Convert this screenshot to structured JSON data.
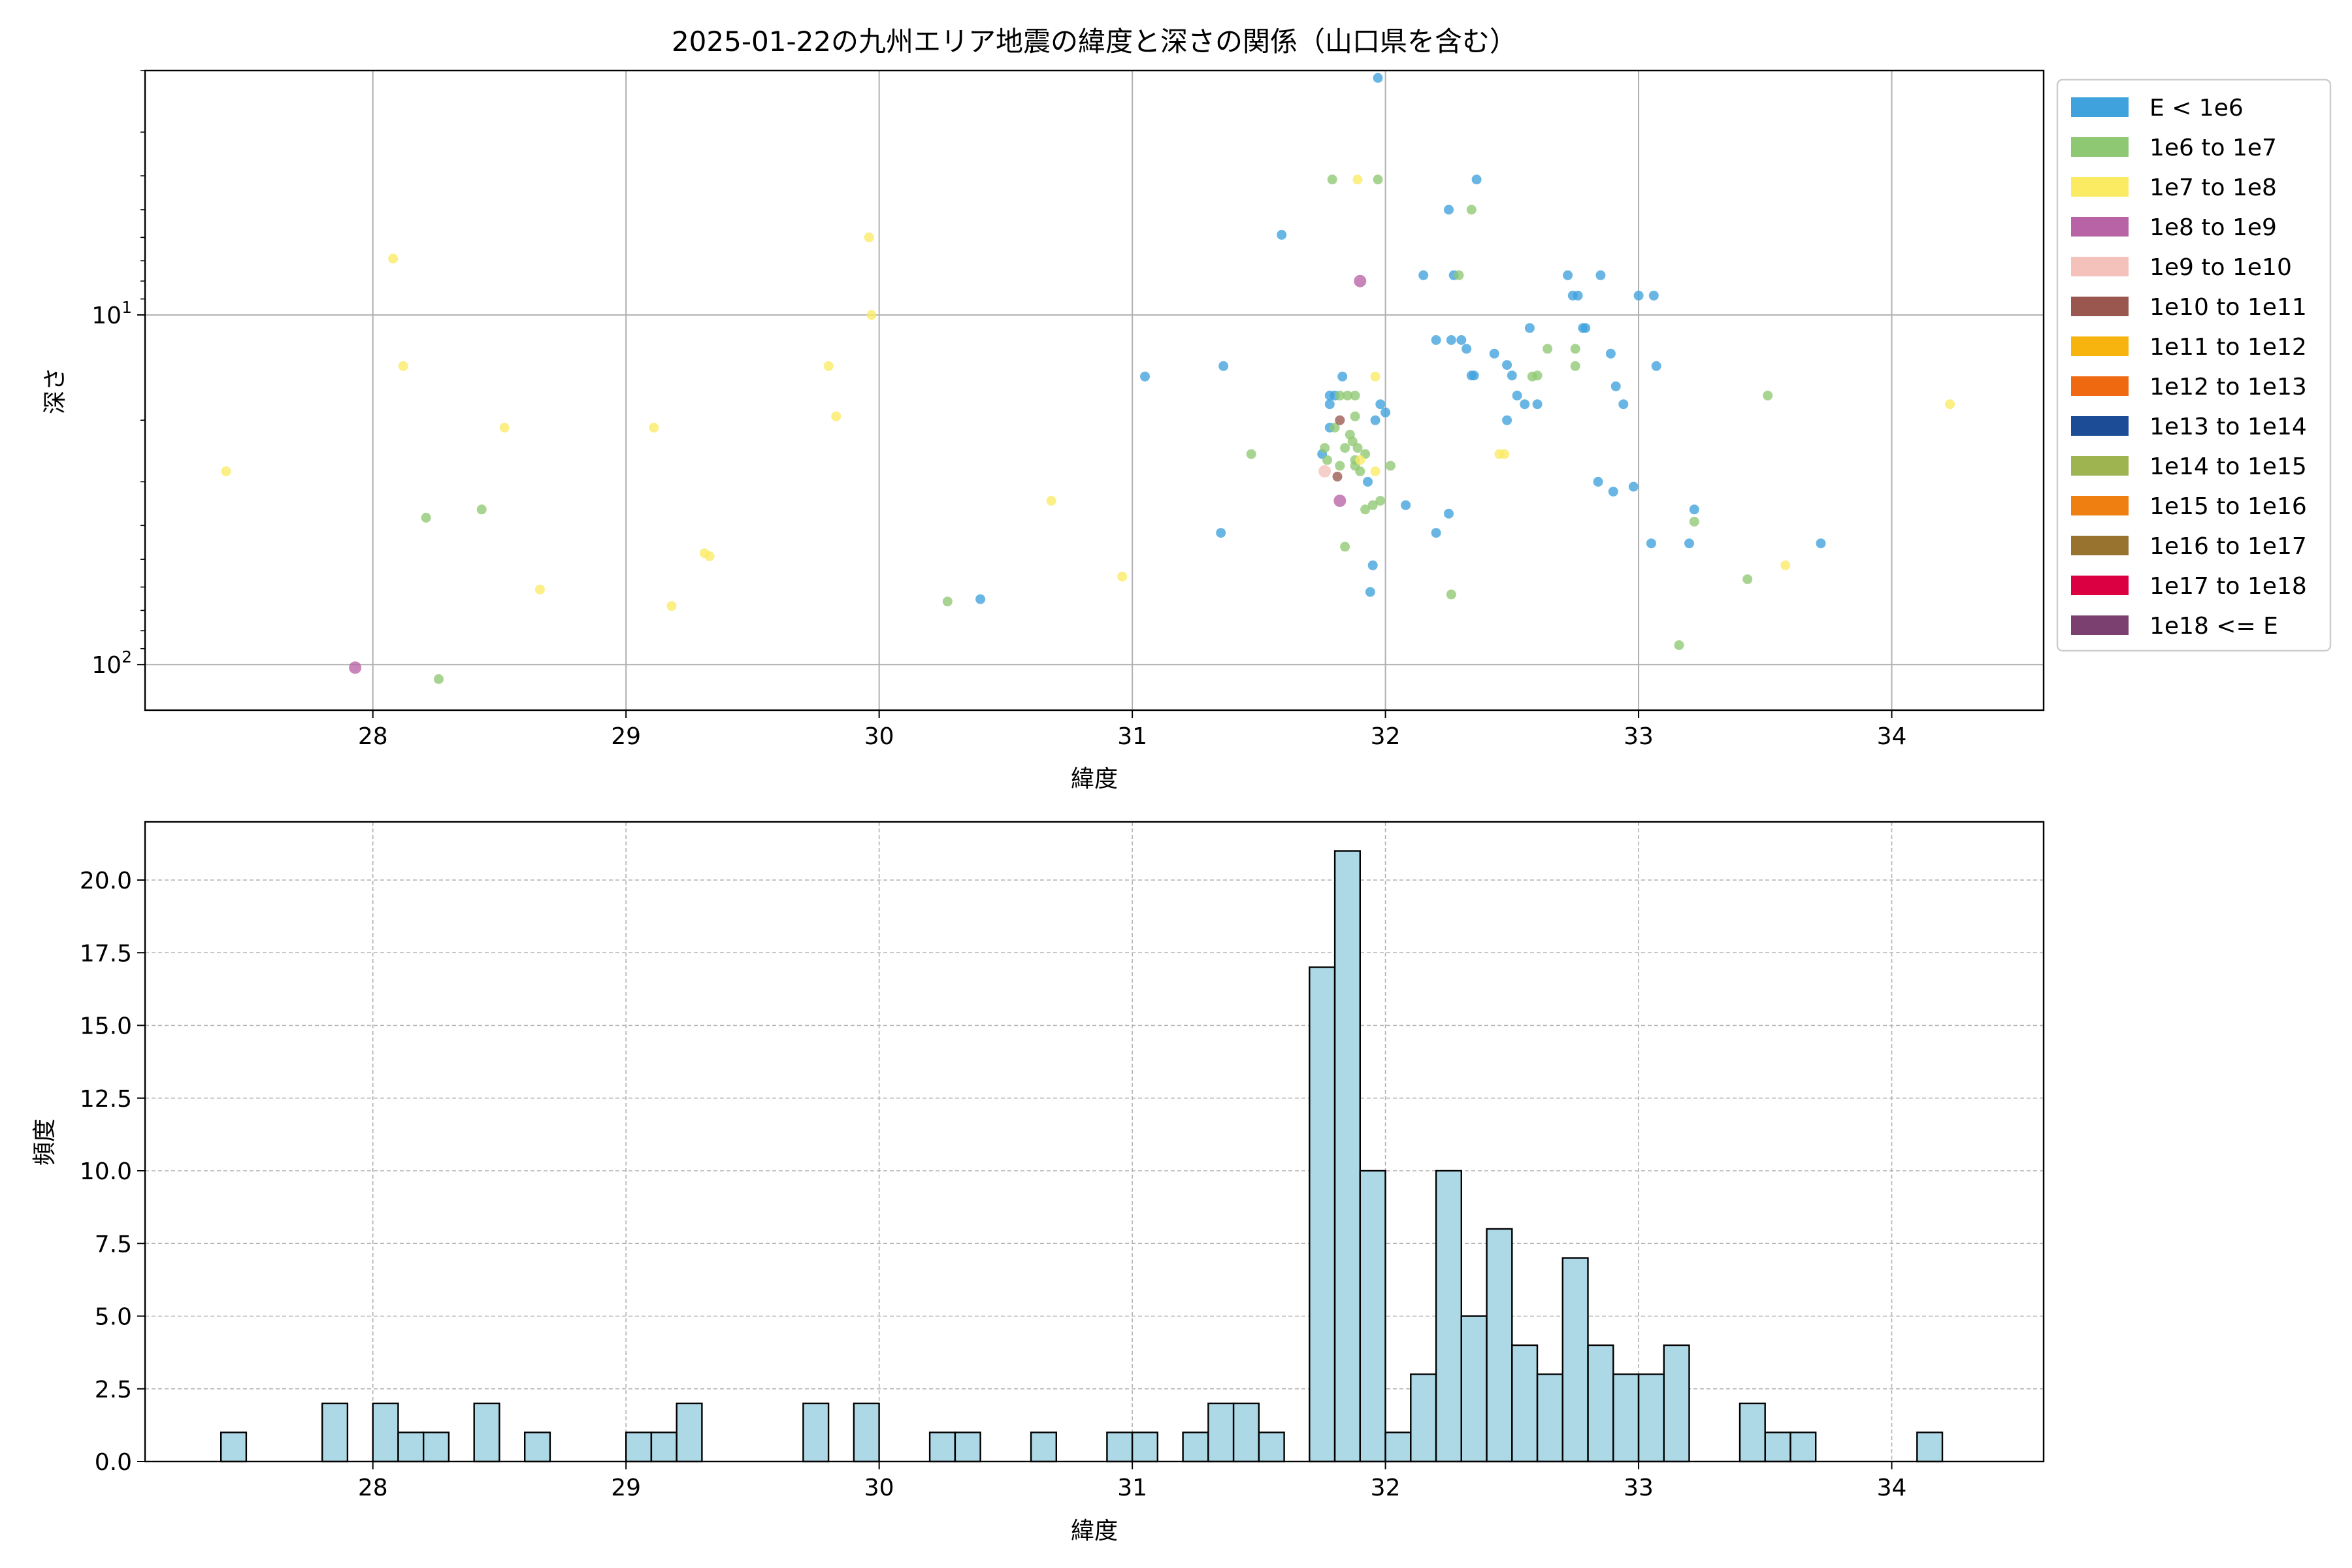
{
  "figure": {
    "title": "2025-01-22の九州エリア地震の緯度と深さの関係（山口県を含む）"
  },
  "chart_data": [
    {
      "type": "scatter",
      "xlabel": "緯度",
      "ylabel": "深さ",
      "xlim": [
        27.1,
        34.6
      ],
      "ylim": [
        135,
        2
      ],
      "yscale": "log",
      "y_inverted": true,
      "grid": true,
      "legend_placement": "outside-right",
      "xticks": [
        28,
        29,
        30,
        31,
        32,
        33,
        34
      ],
      "yticks": [
        {
          "value": 10,
          "base": "10",
          "exp": "1"
        },
        {
          "value": 100,
          "base": "10",
          "exp": "2"
        }
      ],
      "legend": [
        {
          "label": "E < 1e6",
          "color": "#3fa2dc"
        },
        {
          "label": "1e6 to 1e7",
          "color": "#8fc872"
        },
        {
          "label": "1e7 to 1e8",
          "color": "#faeb63"
        },
        {
          "label": "1e8 to 1e9",
          "color": "#b863a6"
        },
        {
          "label": "1e9 to 1e10",
          "color": "#f4c1bb"
        },
        {
          "label": "1e10 to 1e11",
          "color": "#9a574f"
        },
        {
          "label": "1e11 to 1e12",
          "color": "#f8b40e"
        },
        {
          "label": "1e12 to 1e13",
          "color": "#ef6910"
        },
        {
          "label": "1e13 to 1e14",
          "color": "#1d4c96"
        },
        {
          "label": "1e14 to 1e15",
          "color": "#9db451"
        },
        {
          "label": "1e15 to 1e16",
          "color": "#ef7f10"
        },
        {
          "label": "1e16 to 1e17",
          "color": "#987330"
        },
        {
          "label": "1e17 to 1e18",
          "color": "#db0042"
        },
        {
          "label": "1e18 <= E",
          "color": "#7b4070"
        }
      ],
      "points": [
        [
          31.97,
          2.1,
          0
        ],
        [
          32.36,
          4.1,
          0
        ],
        [
          32.25,
          5.0,
          0
        ],
        [
          32.27,
          7.7,
          0
        ],
        [
          32.15,
          7.7,
          0
        ],
        [
          31.59,
          5.9,
          0
        ],
        [
          32.72,
          7.7,
          0
        ],
        [
          32.74,
          8.8,
          0
        ],
        [
          32.76,
          8.8,
          0
        ],
        [
          32.85,
          7.7,
          0
        ],
        [
          33.0,
          8.8,
          0
        ],
        [
          33.06,
          8.8,
          0
        ],
        [
          32.2,
          11.8,
          0
        ],
        [
          32.26,
          11.8,
          0
        ],
        [
          32.3,
          11.8,
          0
        ],
        [
          32.32,
          12.5,
          0
        ],
        [
          32.34,
          14.9,
          0
        ],
        [
          32.35,
          14.9,
          0
        ],
        [
          32.43,
          12.9,
          0
        ],
        [
          32.48,
          13.9,
          0
        ],
        [
          32.5,
          14.9,
          0
        ],
        [
          32.57,
          10.9,
          0
        ],
        [
          32.78,
          10.9,
          0
        ],
        [
          32.79,
          10.9,
          0
        ],
        [
          32.89,
          12.9,
          0
        ],
        [
          32.91,
          16.0,
          0
        ],
        [
          32.94,
          18.0,
          0
        ],
        [
          33.07,
          14.0,
          0
        ],
        [
          32.52,
          17.0,
          0
        ],
        [
          32.55,
          18.0,
          0
        ],
        [
          32.6,
          18.0,
          0
        ],
        [
          32.48,
          20.0,
          0
        ],
        [
          31.05,
          15.0,
          0
        ],
        [
          31.36,
          14.0,
          0
        ],
        [
          31.8,
          17.0,
          0
        ],
        [
          31.78,
          17.0,
          0
        ],
        [
          31.83,
          15.0,
          0
        ],
        [
          31.78,
          18.0,
          0
        ],
        [
          31.78,
          21.0,
          0
        ],
        [
          31.75,
          25.0,
          0
        ],
        [
          31.98,
          18.0,
          0
        ],
        [
          32.0,
          19.0,
          0
        ],
        [
          31.96,
          20.0,
          0
        ],
        [
          31.93,
          30.0,
          0
        ],
        [
          32.08,
          35.0,
          0
        ],
        [
          32.25,
          37.0,
          0
        ],
        [
          32.84,
          30.0,
          0
        ],
        [
          32.9,
          32.0,
          0
        ],
        [
          32.98,
          31.0,
          0
        ],
        [
          33.22,
          36.0,
          0
        ],
        [
          31.35,
          42.0,
          0
        ],
        [
          32.2,
          42.0,
          0
        ],
        [
          33.05,
          45.0,
          0
        ],
        [
          33.2,
          45.0,
          0
        ],
        [
          33.72,
          45.0,
          0
        ],
        [
          31.95,
          52.0,
          0
        ],
        [
          31.94,
          62.0,
          0
        ],
        [
          30.4,
          65.0,
          0
        ],
        [
          31.79,
          4.1,
          1
        ],
        [
          31.97,
          4.1,
          1
        ],
        [
          32.34,
          5.0,
          1
        ],
        [
          32.29,
          7.7,
          1
        ],
        [
          31.82,
          17.0,
          1
        ],
        [
          31.85,
          17.0,
          1
        ],
        [
          31.88,
          17.0,
          1
        ],
        [
          31.88,
          19.5,
          1
        ],
        [
          31.8,
          21.0,
          1
        ],
        [
          31.86,
          22.0,
          1
        ],
        [
          31.87,
          23.0,
          1
        ],
        [
          31.84,
          24.0,
          1
        ],
        [
          31.89,
          24.0,
          1
        ],
        [
          31.92,
          25.0,
          1
        ],
        [
          31.88,
          26.0,
          1
        ],
        [
          31.88,
          27.0,
          1
        ],
        [
          31.76,
          24.0,
          1
        ],
        [
          31.77,
          26.0,
          1
        ],
        [
          31.82,
          27.0,
          1
        ],
        [
          31.9,
          28.0,
          1
        ],
        [
          32.02,
          27.0,
          1
        ],
        [
          31.47,
          25.0,
          1
        ],
        [
          32.6,
          14.9,
          1
        ],
        [
          32.64,
          12.5,
          1
        ],
        [
          32.75,
          12.5,
          1
        ],
        [
          32.75,
          14.0,
          1
        ],
        [
          32.58,
          15.0,
          1
        ],
        [
          33.51,
          17.0,
          1
        ],
        [
          28.21,
          38.0,
          1
        ],
        [
          28.43,
          36.0,
          1
        ],
        [
          31.92,
          36.0,
          1
        ],
        [
          31.95,
          35.0,
          1
        ],
        [
          31.98,
          34.0,
          1
        ],
        [
          31.84,
          46.0,
          1
        ],
        [
          33.22,
          39.0,
          1
        ],
        [
          33.43,
          57.0,
          1
        ],
        [
          32.26,
          63.0,
          1
        ],
        [
          30.27,
          66.0,
          1
        ],
        [
          33.16,
          88.0,
          1
        ],
        [
          28.26,
          110.0,
          1
        ],
        [
          31.89,
          4.1,
          2
        ],
        [
          27.42,
          28.0,
          2
        ],
        [
          28.08,
          6.9,
          2
        ],
        [
          28.12,
          14.0,
          2
        ],
        [
          28.52,
          21.0,
          2
        ],
        [
          29.11,
          21.0,
          2
        ],
        [
          29.8,
          14.0,
          2
        ],
        [
          29.83,
          19.5,
          2
        ],
        [
          29.96,
          6.0,
          2
        ],
        [
          29.97,
          10.0,
          2
        ],
        [
          28.66,
          61.0,
          2
        ],
        [
          29.18,
          68.0,
          2
        ],
        [
          29.31,
          48.0,
          2
        ],
        [
          29.33,
          49.0,
          2
        ],
        [
          30.68,
          34.0,
          2
        ],
        [
          30.96,
          56.0,
          2
        ],
        [
          31.96,
          15.0,
          2
        ],
        [
          31.96,
          28.0,
          2
        ],
        [
          31.9,
          26.0,
          2
        ],
        [
          32.45,
          25.0,
          2
        ],
        [
          32.47,
          25.0,
          2
        ],
        [
          33.58,
          52.0,
          2
        ],
        [
          34.23,
          18.0,
          2
        ],
        [
          31.9,
          8.0,
          3
        ],
        [
          31.82,
          34.0,
          3
        ],
        [
          27.93,
          102.0,
          3
        ],
        [
          31.76,
          28.0,
          4
        ],
        [
          31.82,
          20.0,
          5
        ],
        [
          31.81,
          29.0,
          5
        ]
      ]
    },
    {
      "type": "bar",
      "xlabel": "緯度",
      "ylabel": "頻度",
      "xlim": [
        27.1,
        34.6
      ],
      "ylim": [
        0,
        22
      ],
      "grid": true,
      "grid_style": "dashed",
      "bin_width": 0.1,
      "bar_color": "#add8e6",
      "xticks": [
        28,
        29,
        30,
        31,
        32,
        33,
        34
      ],
      "yticks": [
        "0.0",
        "2.5",
        "5.0",
        "7.5",
        "10.0",
        "12.5",
        "15.0",
        "17.5",
        "20.0"
      ],
      "bins": [
        [
          27.45,
          1
        ],
        [
          27.85,
          2
        ],
        [
          28.05,
          2
        ],
        [
          28.15,
          1
        ],
        [
          28.25,
          1
        ],
        [
          28.45,
          2
        ],
        [
          28.65,
          1
        ],
        [
          29.05,
          1
        ],
        [
          29.15,
          1
        ],
        [
          29.25,
          2
        ],
        [
          29.75,
          2
        ],
        [
          29.95,
          2
        ],
        [
          30.25,
          1
        ],
        [
          30.35,
          1
        ],
        [
          30.65,
          1
        ],
        [
          30.95,
          1
        ],
        [
          31.05,
          1
        ],
        [
          31.25,
          1
        ],
        [
          31.35,
          2
        ],
        [
          31.45,
          2
        ],
        [
          31.55,
          1
        ],
        [
          31.75,
          17
        ],
        [
          31.85,
          21
        ],
        [
          31.95,
          10
        ],
        [
          32.05,
          1
        ],
        [
          32.15,
          3
        ],
        [
          32.25,
          10
        ],
        [
          32.35,
          5
        ],
        [
          32.45,
          8
        ],
        [
          32.55,
          4
        ],
        [
          32.65,
          3
        ],
        [
          32.75,
          7
        ],
        [
          32.85,
          4
        ],
        [
          32.95,
          3
        ],
        [
          33.05,
          3
        ],
        [
          33.15,
          4
        ],
        [
          33.45,
          2
        ],
        [
          33.55,
          1
        ],
        [
          33.65,
          1
        ],
        [
          34.15,
          1
        ]
      ]
    }
  ]
}
